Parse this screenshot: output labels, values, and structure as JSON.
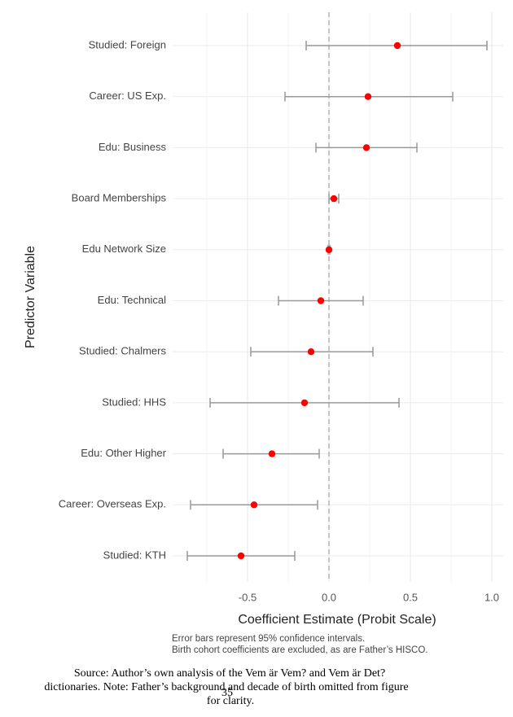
{
  "chart_data": {
    "type": "coefplot",
    "categories": [
      "Studied: Foreign",
      "Career: US Exp.",
      "Edu: Business",
      "Board Memberships",
      "Edu Network Size",
      "Edu: Technical",
      "Studied: Chalmers",
      "Studied: HHS",
      "Edu: Other Higher",
      "Career: Overseas Exp.",
      "Studied: KTH"
    ],
    "values": [
      0.42,
      0.24,
      0.23,
      0.03,
      0.0,
      -0.05,
      -0.11,
      -0.15,
      -0.35,
      -0.46,
      -0.54
    ],
    "lower": [
      -0.14,
      -0.27,
      -0.08,
      0.0,
      -0.005,
      -0.31,
      -0.48,
      -0.73,
      -0.65,
      -0.85,
      -0.87
    ],
    "upper": [
      0.97,
      0.76,
      0.54,
      0.06,
      0.005,
      0.21,
      0.27,
      0.43,
      -0.06,
      -0.07,
      -0.21
    ],
    "color": "#ff0000",
    "error_color": "#999999",
    "xlim": [
      -0.96,
      1.07
    ],
    "xticks": [
      -0.5,
      {
        "value": 0,
        "label": "0.0"
      },
      0.5,
      {
        "value": 1,
        "label": "1.0"
      }
    ],
    "grid": true,
    "xlabel": "Coefficient Estimate (Probit Scale)",
    "ylabel": "Predictor Variable",
    "caption": [
      "Error bars represent 95% confidence intervals.",
      "Birth cohort coefficients are excluded, as are Father’s HISCO."
    ]
  },
  "source_note": [
    "Source: Author’s own analysis of the Vem är Vem? and Vem är Det?",
    "dictionaries. Note: Father’s background and decade of birth omitted from figure",
    "for clarity."
  ],
  "page_number": "35"
}
